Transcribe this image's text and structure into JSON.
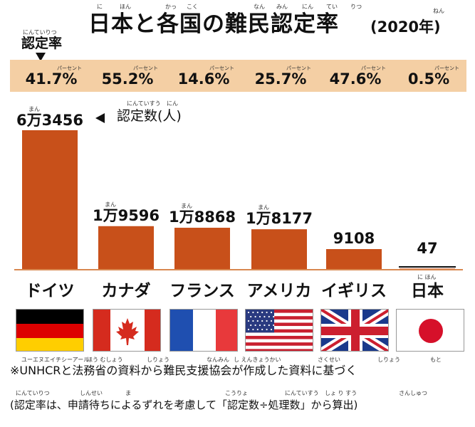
{
  "header": {
    "title": "日本と各国の難民認定率",
    "year": "(2020年)",
    "title_ruby": [
      "に",
      "ほん",
      "かっ",
      "こく",
      "なん",
      "みん",
      "にん",
      "てい",
      "りつ",
      "ねん"
    ]
  },
  "rate_section": {
    "label": "認定率",
    "ruby": "にんていりつ",
    "percent_ruby": "パーセント"
  },
  "count_section": {
    "label": "認定数(人)",
    "ruby_label": "にんていすう",
    "ruby_unit": "にん",
    "man_ruby": "まん"
  },
  "chart_data": {
    "type": "bar",
    "categories": [
      "ドイツ",
      "カナダ",
      "フランス",
      "アメリカ",
      "イギリス",
      "日本"
    ],
    "category_ruby": [
      "",
      "",
      "",
      "",
      "",
      "に ほん"
    ],
    "values": [
      63456,
      19596,
      18868,
      18177,
      9108,
      47
    ],
    "value_labels": [
      "6万3456",
      "1万9596",
      "1万8868",
      "1万8177",
      "9108",
      "47"
    ],
    "recognition_rates": [
      "41.7%",
      "55.2%",
      "14.6%",
      "25.7%",
      "47.6%",
      "0.5%"
    ],
    "bar_color": "#c8501a",
    "flags": [
      "germany-flag",
      "canada-flag",
      "france-flag",
      "usa-flag",
      "uk-flag",
      "japan-flag"
    ]
  },
  "colors": {
    "rate_band": "#f4cfa4",
    "bar": "#c8501a",
    "axis": "#d88850"
  },
  "footer": {
    "source": "※UNHCRと法務省の資料から難民支援協会が作成した資料に基づく",
    "note": "(認定率は、申請待ちによるずれを考慮して「認定数÷処理数」から算出)",
    "source_ruby": [
      "ユーエヌエイチシーアール",
      "ほう むしょう",
      "しりょう",
      "なんみん",
      "し えんきょうかい",
      "さくせい",
      "しりょう",
      "もと"
    ],
    "note_ruby": [
      "にんていりつ",
      "しんせい",
      "ま",
      "こうりょ",
      "にんていすう",
      "しょ り すう",
      "さんしゅつ"
    ]
  }
}
